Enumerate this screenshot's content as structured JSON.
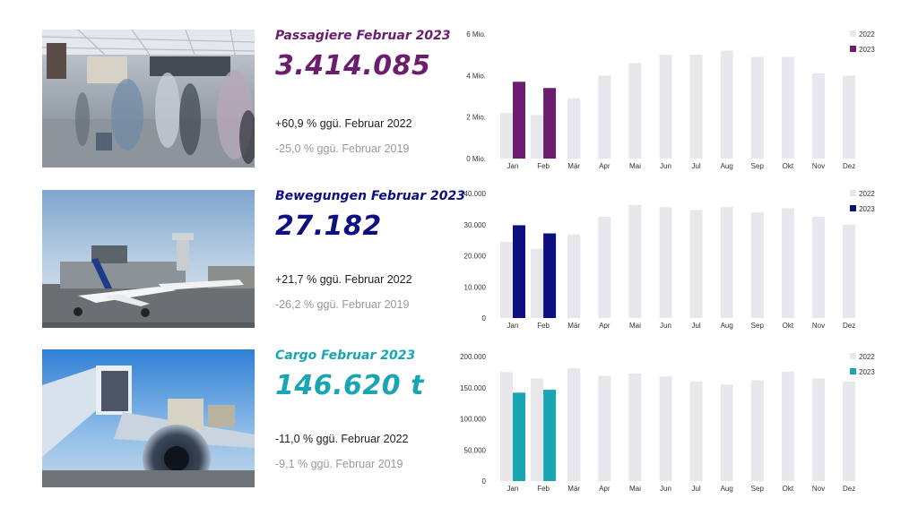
{
  "colors": {
    "passengers": "#6b1d6e",
    "movements": "#0d0f80",
    "cargo": "#1aa5b3",
    "prior": "#e8e7ec"
  },
  "sections": [
    {
      "photo": "airport-terminal-photo",
      "title": "Passagiere Februar 2023",
      "value": "3.414.085",
      "cmp_2022": "+60,9 % ggü. Februar 2022",
      "cmp_2019": "-25,0 % ggü. Februar 2019"
    },
    {
      "photo": "airplane-apron-photo",
      "title": "Bewegungen Februar 2023",
      "value": "27.182",
      "cmp_2022": "+21,7 % ggü. Februar 2022",
      "cmp_2019": "-26,2 % ggü. Februar 2019"
    },
    {
      "photo": "cargo-loading-photo",
      "title": "Cargo Februar 2023",
      "value": "146.620 t",
      "cmp_2022": "-11,0 % ggü. Februar 2022",
      "cmp_2019": "-9,1 % ggü. Februar 2019"
    }
  ],
  "chart_data": [
    {
      "type": "bar",
      "categories": [
        "Jan",
        "Feb",
        "Mär",
        "Apr",
        "Mai",
        "Jun",
        "Jul",
        "Aug",
        "Sep",
        "Okt",
        "Nov",
        "Dez"
      ],
      "series": [
        {
          "name": "2022",
          "values": [
            2.2,
            2.1,
            2.9,
            4.0,
            4.6,
            5.0,
            5.0,
            5.2,
            4.9,
            4.9,
            4.1,
            4.0
          ]
        },
        {
          "name": "2023",
          "values": [
            3.7,
            3.4,
            null,
            null,
            null,
            null,
            null,
            null,
            null,
            null,
            null,
            null
          ]
        }
      ],
      "ylim": [
        0,
        6
      ],
      "yticks": [
        0,
        2,
        4,
        6
      ],
      "ytick_labels": [
        "0 Mio.",
        "2 Mio.",
        "4 Mio.",
        "6 Mio."
      ],
      "legend": "top-right"
    },
    {
      "type": "bar",
      "categories": [
        "Jan",
        "Feb",
        "Mär",
        "Apr",
        "Mai",
        "Jun",
        "Jul",
        "Aug",
        "Sep",
        "Okt",
        "Nov",
        "Dez"
      ],
      "series": [
        {
          "name": "2022",
          "values": [
            24500,
            22300,
            26800,
            32500,
            36300,
            35600,
            34700,
            35600,
            33900,
            35300,
            32500,
            30000
          ]
        },
        {
          "name": "2023",
          "values": [
            29800,
            27182,
            null,
            null,
            null,
            null,
            null,
            null,
            null,
            null,
            null,
            null
          ]
        }
      ],
      "ylim": [
        0,
        40000
      ],
      "yticks": [
        0,
        10000,
        20000,
        30000,
        40000
      ],
      "ytick_labels": [
        "0",
        "10.000",
        "20.000",
        "30.000",
        "40.000"
      ],
      "legend": "top-right"
    },
    {
      "type": "bar",
      "categories": [
        "Jan",
        "Feb",
        "Mär",
        "Apr",
        "Mai",
        "Jun",
        "Jul",
        "Aug",
        "Sep",
        "Okt",
        "Nov",
        "Dez"
      ],
      "series": [
        {
          "name": "2022",
          "values": [
            175000,
            165000,
            181000,
            169000,
            173000,
            168000,
            160000,
            155000,
            162000,
            176000,
            165000,
            160000
          ]
        },
        {
          "name": "2023",
          "values": [
            142000,
            146620,
            null,
            null,
            null,
            null,
            null,
            null,
            null,
            null,
            null,
            null
          ]
        }
      ],
      "ylim": [
        0,
        200000
      ],
      "yticks": [
        0,
        50000,
        100000,
        150000,
        200000
      ],
      "ytick_labels": [
        "0",
        "50.000",
        "100.000",
        "150.000",
        "200.000"
      ],
      "legend": "top-right"
    }
  ]
}
